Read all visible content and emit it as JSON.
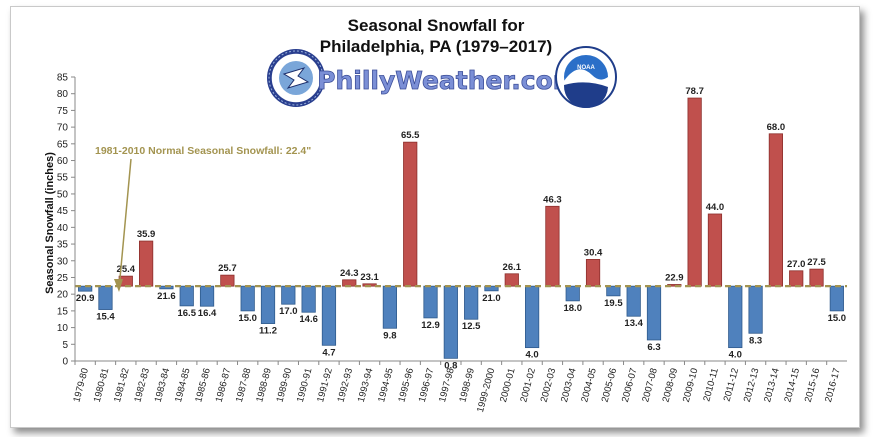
{
  "chart_data": {
    "type": "bar",
    "title": "Seasonal Snowfall for",
    "subtitle": "Philadelphia, PA (1979–2017)",
    "site_name": "PhillyWeather.com",
    "ylabel": "Seasonal Snowfall (inches)",
    "xlabel": "",
    "ylim": [
      0,
      85
    ],
    "yticks": [
      0,
      5,
      10,
      15,
      20,
      25,
      30,
      35,
      40,
      45,
      50,
      55,
      60,
      65,
      70,
      75,
      80,
      85
    ],
    "grid": false,
    "baseline": 22.4,
    "normal_label": "1981-2010 Normal Seasonal Snowfall: 22.4\"",
    "colors": {
      "above": "#c0504d",
      "below": "#4f81bd",
      "normal_line": "#a39450"
    },
    "categories": [
      "1979-80",
      "1980-81",
      "1981-82",
      "1982-83",
      "1983-84",
      "1984-85",
      "1985-86",
      "1986-87",
      "1987-88",
      "1988-89",
      "1989-90",
      "1990-91",
      "1991-92",
      "1992-93",
      "1993-94",
      "1994-95",
      "1995-96",
      "1996-97",
      "1997-98",
      "1998-99",
      "1999-2000",
      "2000-01",
      "2001-02",
      "2002-03",
      "2003-04",
      "2004-05",
      "2005-06",
      "2006-07",
      "2007-08",
      "2008-09",
      "2009-10",
      "2010-11",
      "2011-12",
      "2012-13",
      "2013-14",
      "2014-15",
      "2015-16",
      "2016-17"
    ],
    "values": [
      20.9,
      15.4,
      25.4,
      35.9,
      21.6,
      16.5,
      16.4,
      25.7,
      15.0,
      11.2,
      17.0,
      14.6,
      4.7,
      24.3,
      23.1,
      9.8,
      65.5,
      12.9,
      0.8,
      12.5,
      21.0,
      26.1,
      4.0,
      46.3,
      18.0,
      30.4,
      19.5,
      13.4,
      6.3,
      22.9,
      78.7,
      44.0,
      4.0,
      8.3,
      68.0,
      27.0,
      27.5,
      15.0
    ],
    "value_labels": [
      "20.9",
      "15.4",
      "25.4",
      "35.9",
      "21.6",
      "16.5",
      "16.4",
      "25.7",
      "15.0",
      "11.2",
      "17.0",
      "14.6",
      "4.7",
      "24.3",
      "23.1",
      "9.8",
      "65.5",
      "12.9",
      "0.8",
      "12.5",
      "21.0",
      "26.1",
      "4.0",
      "46.3",
      "18.0",
      "30.4",
      "19.5",
      "13.4",
      "6.3",
      "22.9",
      "78.7",
      "44.0",
      "4.0",
      "8.3",
      "68.0",
      "27.0",
      "27.5",
      "15.0"
    ]
  },
  "logos": {
    "left": {
      "name": "nws-logo-icon",
      "text": "NATIONAL WEATHER SERVICE"
    },
    "right": {
      "name": "noaa-logo-icon",
      "text": "NOAA"
    }
  }
}
